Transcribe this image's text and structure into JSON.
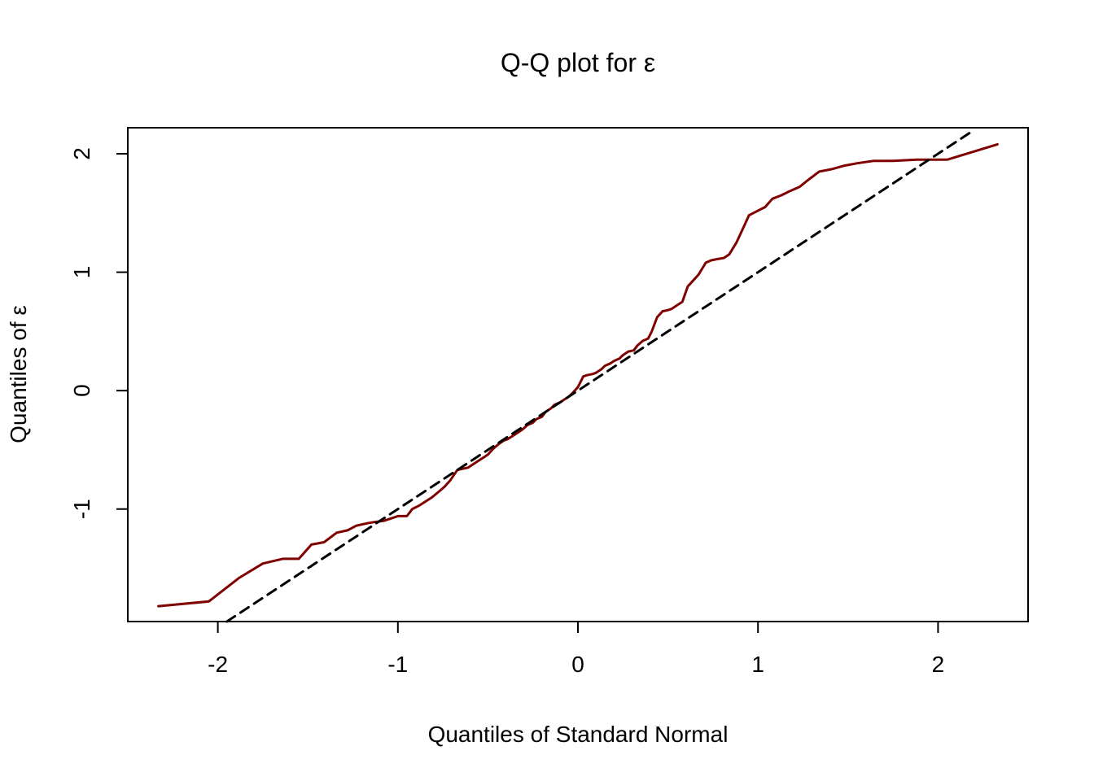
{
  "chart_data": {
    "type": "line",
    "title": "Q-Q plot for ε",
    "xlabel": "Quantiles of Standard Normal",
    "ylabel": "Quantiles of ε",
    "xlim": [
      -2.5,
      2.5
    ],
    "ylim": [
      -1.95,
      2.22
    ],
    "xticks": [
      -2,
      -1,
      0,
      1,
      2
    ],
    "yticks": [
      -1,
      0,
      1,
      2
    ],
    "xtick_labels": [
      "-2",
      "-1",
      "0",
      "1",
      "2"
    ],
    "ytick_labels": [
      "-1",
      "0",
      "1",
      "2"
    ],
    "grid": false,
    "series": [
      {
        "color": "#800000",
        "x": [
          -2.33,
          -2.05,
          -1.88,
          -1.75,
          -1.64,
          -1.55,
          -1.48,
          -1.41,
          -1.34,
          -1.28,
          -1.23,
          -1.17,
          -1.13,
          -1.08,
          -1.04,
          -1.0,
          -0.95,
          -0.92,
          -0.88,
          -0.84,
          -0.81,
          -0.77,
          -0.74,
          -0.71,
          -0.67,
          -0.64,
          -0.61,
          -0.58,
          -0.55,
          -0.52,
          -0.5,
          -0.47,
          -0.44,
          -0.41,
          -0.39,
          -0.36,
          -0.33,
          -0.31,
          -0.28,
          -0.25,
          -0.23,
          -0.2,
          -0.18,
          -0.15,
          -0.13,
          -0.1,
          -0.08,
          -0.05,
          -0.03,
          0.0,
          0.03,
          0.05,
          0.08,
          0.1,
          0.13,
          0.15,
          0.18,
          0.2,
          0.23,
          0.25,
          0.28,
          0.31,
          0.33,
          0.36,
          0.39,
          0.41,
          0.44,
          0.47,
          0.5,
          0.52,
          0.55,
          0.58,
          0.61,
          0.64,
          0.67,
          0.71,
          0.74,
          0.77,
          0.81,
          0.84,
          0.88,
          0.92,
          0.95,
          1.0,
          1.04,
          1.08,
          1.13,
          1.17,
          1.23,
          1.28,
          1.34,
          1.41,
          1.48,
          1.55,
          1.64,
          1.75,
          1.88,
          2.05,
          2.33
        ],
        "y": [
          -1.82,
          -1.78,
          -1.58,
          -1.46,
          -1.42,
          -1.42,
          -1.3,
          -1.28,
          -1.2,
          -1.18,
          -1.14,
          -1.12,
          -1.11,
          -1.1,
          -1.08,
          -1.06,
          -1.06,
          -1.0,
          -0.97,
          -0.93,
          -0.9,
          -0.85,
          -0.81,
          -0.76,
          -0.67,
          -0.66,
          -0.65,
          -0.62,
          -0.59,
          -0.56,
          -0.54,
          -0.49,
          -0.45,
          -0.42,
          -0.41,
          -0.38,
          -0.35,
          -0.33,
          -0.29,
          -0.27,
          -0.24,
          -0.22,
          -0.18,
          -0.15,
          -0.12,
          -0.1,
          -0.08,
          -0.05,
          -0.02,
          0.03,
          0.12,
          0.13,
          0.14,
          0.15,
          0.18,
          0.21,
          0.23,
          0.25,
          0.27,
          0.3,
          0.33,
          0.34,
          0.38,
          0.42,
          0.44,
          0.5,
          0.62,
          0.67,
          0.68,
          0.69,
          0.72,
          0.75,
          0.88,
          0.93,
          0.98,
          1.08,
          1.1,
          1.11,
          1.12,
          1.15,
          1.25,
          1.38,
          1.48,
          1.52,
          1.55,
          1.62,
          1.65,
          1.68,
          1.72,
          1.78,
          1.85,
          1.87,
          1.9,
          1.92,
          1.94,
          1.94,
          1.95,
          1.95,
          2.08
        ]
      },
      {
        "color": "#000000",
        "x": [
          -1.95,
          2.2
        ],
        "y": [
          -1.95,
          2.2
        ]
      }
    ]
  }
}
